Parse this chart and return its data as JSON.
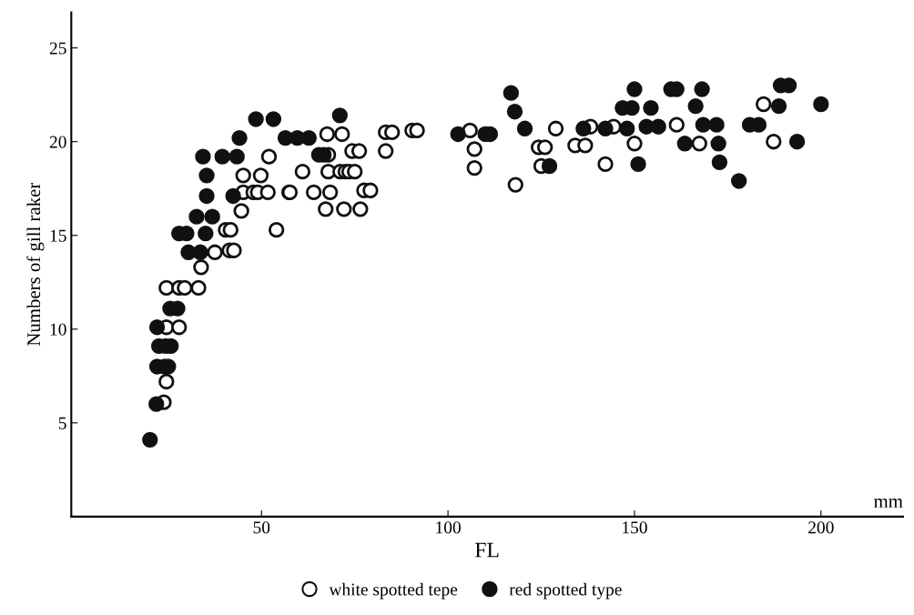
{
  "chart_data": {
    "type": "scatter",
    "xlabel": "FL",
    "ylabel": "Numbers of gill raker",
    "annotations": [
      "mm"
    ],
    "xlim": [
      -1,
      222
    ],
    "ylim": [
      0,
      26.9
    ],
    "xticks": [
      50,
      100,
      150,
      200
    ],
    "yticks": [
      5,
      10,
      15,
      20,
      25
    ],
    "grid": false,
    "legend": "bottom",
    "marker": "circle",
    "series": [
      {
        "name": "white spotted tepe",
        "color": "#ffffff",
        "x": [
          52,
          45.1,
          49.8,
          45.1,
          47.8,
          49,
          51.7,
          57.4,
          44.6,
          40.4,
          41.7,
          54,
          37.5,
          41.4,
          42.6,
          33.8,
          24.5,
          27.9,
          29.4,
          33.1,
          24.5,
          27.9,
          24.5,
          23.8,
          67.9,
          67.6,
          71.6,
          83.3,
          85.0,
          90.4,
          91.7,
          74.3,
          76.2,
          83.3,
          61,
          67.9,
          71.1,
          72.5,
          73.5,
          75,
          57.6,
          64,
          68.4,
          77.5,
          79.2,
          67.2,
          72.1,
          76.5,
          105.9,
          128.9,
          138.2,
          144.4,
          107.1,
          124.3,
          126,
          134.1,
          136.8,
          150,
          107.1,
          125,
          142.2,
          118.1,
          161.3,
          167.4,
          184.6,
          187.3
        ],
        "values": [
          19.2,
          18.2,
          18.2,
          17.3,
          17.3,
          17.3,
          17.3,
          17.3,
          16.3,
          15.3,
          15.3,
          15.3,
          14.1,
          14.2,
          14.2,
          13.3,
          12.2,
          12.2,
          12.2,
          12.2,
          10.1,
          10.1,
          7.2,
          6.1,
          19.3,
          20.4,
          20.4,
          20.5,
          20.5,
          20.6,
          20.6,
          19.5,
          19.5,
          19.5,
          18.4,
          18.4,
          18.4,
          18.4,
          18.4,
          18.4,
          17.3,
          17.3,
          17.3,
          17.4,
          17.4,
          16.4,
          16.4,
          16.4,
          20.6,
          20.7,
          20.8,
          20.8,
          19.6,
          19.7,
          19.7,
          19.8,
          19.8,
          19.9,
          18.6,
          18.7,
          18.8,
          17.7,
          20.9,
          19.9,
          22,
          20
        ]
      },
      {
        "name": "red spotted type",
        "color": "#111111",
        "x": [
          20.1,
          21.8,
          22,
          24,
          25,
          22.5,
          24.3,
          25.7,
          22,
          25.5,
          27.5,
          30.4,
          33.6,
          27.9,
          29.9,
          35,
          32.6,
          36.8,
          35.3,
          42.4,
          35.3,
          34.3,
          39.5,
          43.4,
          44.1,
          56.4,
          59.6,
          62.7,
          71,
          53.2,
          48.5,
          65.4,
          66.7,
          102.7,
          110,
          111.3,
          116.9,
          117.9,
          120.6,
          136.3,
          142.2,
          148,
          153.2,
          156.4,
          146.8,
          149.3,
          154.4,
          150,
          159.8,
          127.2,
          151,
          161.3,
          168.1,
          189.2,
          191.4,
          166.4,
          188.7,
          200,
          168.4,
          172,
          180.9,
          183.3,
          163.5,
          172.5,
          193.6,
          172.8,
          178
        ],
        "values": [
          4.1,
          6.0,
          8.0,
          8.0,
          8.0,
          9.1,
          9.1,
          9.1,
          10.1,
          11.1,
          11.1,
          14.1,
          14.1,
          15.1,
          15.1,
          15.1,
          16.0,
          16.0,
          17.1,
          17.1,
          18.2,
          19.2,
          19.2,
          19.2,
          20.2,
          20.2,
          20.2,
          20.2,
          21.4,
          21.2,
          21.2,
          19.3,
          19.3,
          20.4,
          20.4,
          20.4,
          22.6,
          21.6,
          20.7,
          20.7,
          20.7,
          20.7,
          20.8,
          20.8,
          21.8,
          21.8,
          21.8,
          22.8,
          22.8,
          18.7,
          18.8,
          22.8,
          22.8,
          23.0,
          23.0,
          21.9,
          21.9,
          22.0,
          20.9,
          20.9,
          20.9,
          20.9,
          19.9,
          19.9,
          20.0,
          18.9,
          17.9
        ]
      }
    ]
  }
}
